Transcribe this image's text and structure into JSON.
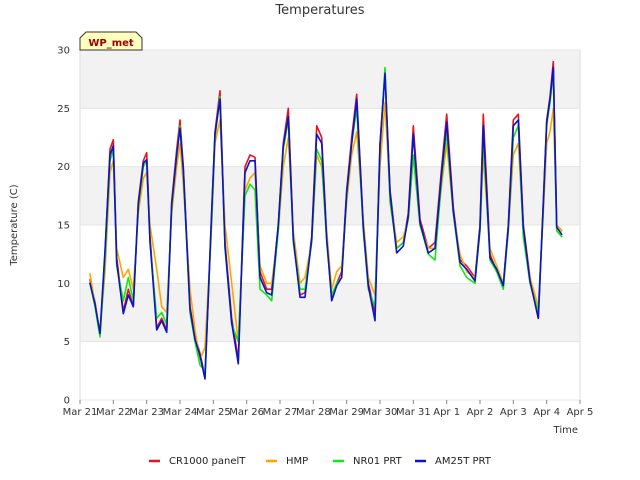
{
  "chart_data": {
    "type": "line",
    "title": "Temperatures",
    "xlabel": "Time",
    "ylabel": "Temperature (C)",
    "badge": "WP_met",
    "ylim": [
      0,
      30
    ],
    "yticks": [
      0,
      5,
      10,
      15,
      20,
      25,
      30
    ],
    "xlim": [
      0,
      15
    ],
    "xticks": [
      {
        "x": 0,
        "label": "Mar 21"
      },
      {
        "x": 1,
        "label": "Mar 22"
      },
      {
        "x": 2,
        "label": "Mar 23"
      },
      {
        "x": 3,
        "label": "Mar 24"
      },
      {
        "x": 4,
        "label": "Mar 25"
      },
      {
        "x": 5,
        "label": "Mar 26"
      },
      {
        "x": 6,
        "label": "Mar 27"
      },
      {
        "x": 7,
        "label": "Mar 28"
      },
      {
        "x": 8,
        "label": "Mar 29"
      },
      {
        "x": 9,
        "label": "Mar 30"
      },
      {
        "x": 10,
        "label": "Mar 31"
      },
      {
        "x": 11,
        "label": "Apr 1"
      },
      {
        "x": 12,
        "label": "Apr 2"
      },
      {
        "x": 13,
        "label": "Apr 3"
      },
      {
        "x": 14,
        "label": "Apr 4"
      },
      {
        "x": 15,
        "label": "Apr 5"
      }
    ],
    "bands": [
      [
        5,
        10
      ],
      [
        15,
        20
      ],
      [
        25,
        30
      ]
    ],
    "x": [
      0.3,
      0.45,
      0.6,
      0.75,
      0.9,
      1.0,
      1.1,
      1.3,
      1.45,
      1.6,
      1.75,
      1.9,
      2.0,
      2.1,
      2.3,
      2.45,
      2.6,
      2.75,
      2.9,
      3.0,
      3.1,
      3.3,
      3.45,
      3.6,
      3.75,
      3.95,
      4.05,
      4.2,
      4.35,
      4.55,
      4.75,
      4.95,
      5.1,
      5.25,
      5.4,
      5.6,
      5.75,
      5.95,
      6.1,
      6.25,
      6.4,
      6.6,
      6.75,
      6.95,
      7.1,
      7.25,
      7.4,
      7.55,
      7.7,
      7.85,
      8.0,
      8.15,
      8.3,
      8.5,
      8.65,
      8.85,
      9.0,
      9.15,
      9.3,
      9.5,
      9.7,
      9.85,
      10.0,
      10.2,
      10.45,
      10.65,
      10.85,
      11.0,
      11.2,
      11.4,
      11.6,
      11.85,
      12.0,
      12.1,
      12.3,
      12.5,
      12.7,
      12.85,
      13.0,
      13.15,
      13.3,
      13.5,
      13.75,
      13.9,
      14.0,
      14.1,
      14.2,
      14.3,
      14.45
    ],
    "series": [
      {
        "name": "CR1000 panelT",
        "color": "#e6141e",
        "values": [
          10.3,
          8.4,
          5.6,
          12.5,
          21.5,
          22.3,
          12.2,
          7.6,
          9.5,
          8.0,
          17.0,
          20.5,
          21.2,
          14.0,
          6.2,
          7.0,
          6.0,
          17.0,
          21.5,
          24.0,
          20.0,
          8.0,
          5.5,
          4.0,
          2.0,
          16.0,
          23.0,
          26.5,
          13.5,
          7.0,
          3.5,
          20.0,
          21.0,
          20.8,
          11.0,
          9.5,
          9.5,
          15.0,
          22.0,
          25.0,
          14.0,
          9.0,
          9.2,
          14.0,
          23.5,
          22.5,
          14.0,
          8.7,
          10.0,
          11.0,
          18.0,
          22.5,
          26.2,
          15.0,
          10.0,
          7.5,
          22.0,
          28.0,
          18.0,
          13.0,
          13.5,
          16.0,
          23.5,
          15.5,
          13.0,
          13.5,
          20.0,
          24.5,
          16.5,
          12.0,
          11.5,
          10.5,
          15.0,
          24.5,
          12.5,
          11.0,
          10.0,
          15.0,
          24.0,
          24.5,
          15.0,
          10.5,
          7.0,
          17.0,
          24.0,
          26.0,
          29.0,
          15.0,
          14.5
        ]
      },
      {
        "name": "HMP",
        "color": "#ffa500",
        "values": [
          10.8,
          8.2,
          5.8,
          11.0,
          19.5,
          20.5,
          13.0,
          10.5,
          11.2,
          9.5,
          16.0,
          19.0,
          19.5,
          15.0,
          11.2,
          8.0,
          7.5,
          16.0,
          20.0,
          22.0,
          18.5,
          9.5,
          6.0,
          3.5,
          4.5,
          15.0,
          22.0,
          24.0,
          15.0,
          10.0,
          5.0,
          18.0,
          19.0,
          19.5,
          11.5,
          10.0,
          10.0,
          14.5,
          20.0,
          22.5,
          14.5,
          10.0,
          10.5,
          13.5,
          21.0,
          20.0,
          14.5,
          9.5,
          11.0,
          11.5,
          17.0,
          21.0,
          23.0,
          15.5,
          10.5,
          9.0,
          20.0,
          25.5,
          17.5,
          13.5,
          14.0,
          15.5,
          21.0,
          15.0,
          13.0,
          13.0,
          18.5,
          22.0,
          16.0,
          12.5,
          11.0,
          10.5,
          14.5,
          21.0,
          13.0,
          11.5,
          10.0,
          14.5,
          21.0,
          22.0,
          14.5,
          10.5,
          8.0,
          16.0,
          22.0,
          23.0,
          25.0,
          15.0,
          14.5
        ]
      },
      {
        "name": "NR01 PRT",
        "color": "#14e614",
        "values": [
          10.0,
          8.0,
          5.4,
          12.0,
          20.5,
          21.5,
          11.5,
          8.5,
          10.5,
          8.5,
          16.5,
          20.0,
          20.5,
          13.5,
          7.0,
          7.5,
          6.5,
          16.5,
          21.0,
          23.5,
          19.5,
          7.5,
          5.0,
          3.0,
          2.5,
          15.5,
          22.5,
          26.0,
          13.0,
          6.5,
          5.0,
          17.5,
          18.5,
          18.0,
          9.5,
          9.0,
          8.5,
          14.5,
          21.5,
          24.0,
          13.5,
          9.5,
          9.5,
          13.5,
          21.5,
          20.5,
          13.5,
          9.0,
          10.0,
          10.5,
          17.5,
          22.0,
          25.0,
          14.5,
          9.5,
          8.0,
          21.5,
          28.5,
          17.0,
          13.0,
          13.5,
          15.5,
          21.0,
          15.0,
          12.5,
          12.0,
          19.0,
          23.0,
          16.0,
          11.5,
          10.5,
          10.0,
          14.5,
          22.5,
          12.0,
          11.0,
          9.5,
          14.5,
          22.5,
          23.5,
          14.0,
          10.0,
          7.5,
          16.5,
          23.5,
          25.5,
          28.0,
          14.5,
          14.0
        ]
      },
      {
        "name": "AM25T PRT",
        "color": "#0a14c8",
        "values": [
          10.0,
          8.2,
          5.7,
          12.8,
          21.0,
          21.8,
          11.8,
          7.4,
          9.0,
          8.0,
          16.8,
          20.3,
          20.6,
          13.6,
          6.0,
          6.8,
          5.8,
          16.8,
          21.0,
          23.3,
          19.8,
          7.8,
          5.2,
          3.8,
          1.8,
          16.2,
          22.8,
          25.8,
          13.2,
          6.6,
          3.1,
          19.5,
          20.5,
          20.5,
          10.5,
          9.2,
          9.0,
          15.0,
          21.8,
          24.3,
          13.8,
          8.8,
          8.8,
          13.8,
          22.8,
          22.0,
          13.8,
          8.5,
          9.8,
          10.5,
          17.8,
          22.0,
          25.8,
          14.8,
          9.8,
          6.8,
          21.8,
          28.0,
          17.8,
          12.6,
          13.2,
          15.8,
          22.8,
          15.2,
          12.6,
          13.0,
          19.5,
          23.8,
          16.2,
          11.8,
          11.2,
          10.2,
          14.8,
          23.5,
          12.2,
          11.2,
          9.8,
          14.8,
          23.5,
          24.0,
          14.8,
          10.2,
          7.0,
          16.8,
          23.8,
          25.8,
          28.5,
          14.8,
          14.2
        ]
      }
    ]
  }
}
